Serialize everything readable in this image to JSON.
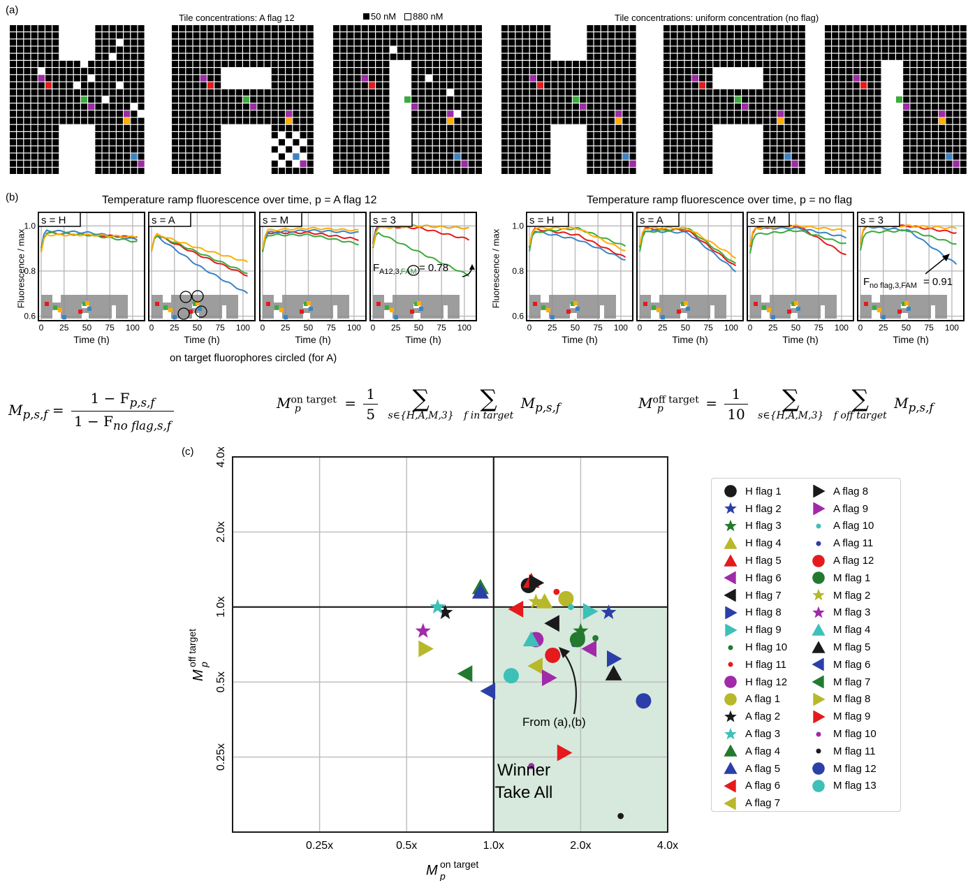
{
  "panel_a": {
    "label": "(a)",
    "left_title": "Tile concentrations: A flag 12",
    "legend_black": "50 nM",
    "legend_white": "880 nM",
    "right_title": "Tile concentrations: uniform concentration (no flag)"
  },
  "panel_b": {
    "label": "(b)",
    "left_title": "Temperature ramp fluorescence over time, p = A flag 12",
    "right_title": "Temperature ramp fluorescence over time, p = no flag",
    "ylabel": "Fluorescence / max",
    "xlabel": "Time (h)",
    "note": "on target fluorophores circled (for A)",
    "subplot_titles": [
      "s = H",
      "s = A",
      "s = M",
      "s = 3",
      "s = H",
      "s = A",
      "s = M",
      "s = 3"
    ],
    "y_ticks": [
      "1.0",
      "0.8",
      "0.6"
    ],
    "x_ticks": [
      "0",
      "25",
      "50",
      "75",
      "100"
    ],
    "annotation_left_main": "F",
    "annotation_left_sub1": "A12,3,",
    "annotation_left_sub2": "FAM",
    "annotation_left_value": " = 0.78",
    "annotation_right_main": "F",
    "annotation_right_sub": "no flag,3,FAM",
    "annotation_right_value": " = 0.91",
    "series_colors": {
      "red": "#e41a1c",
      "blue": "#3a84c4",
      "green": "#3caa3c",
      "orange": "#ffae00"
    }
  },
  "formulas": {
    "f1_lhs": "M",
    "f1_lhs_sub": "p,s,f",
    "f1_num": "1 − F",
    "f1_num_sub": "p,s,f",
    "f1_den": "1 − F",
    "f1_den_sub": "no flag,s,f",
    "f2_lhs": "M",
    "f2_sup": "on target",
    "f2_sub": "p",
    "f2_frac_num": "1",
    "f2_frac_den": "5",
    "f2_sum1": "s∈{H,A,M,3}",
    "f2_sum2": "f in target",
    "f2_rhs": "M",
    "f2_rhs_sub": "p,s,f",
    "f3_lhs": "M",
    "f3_sup": "off target",
    "f3_sub": "p",
    "f3_frac_num": "1",
    "f3_frac_den": "10",
    "f3_sum1": "s∈{H,A,M,3}",
    "f3_sum2": "f off target",
    "f3_rhs": "M",
    "f3_rhs_sub": "p,s,f",
    "equals": "="
  },
  "panel_c": {
    "label": "(c)",
    "x_ticks": [
      "0.25x",
      "0.5x",
      "1.0x",
      "2.0x",
      "4.0x"
    ],
    "y_ticks": [
      "0.25x",
      "0.5x",
      "1.0x",
      "2.0x",
      "4.0x"
    ],
    "xlabel_main": "M",
    "xlabel_sup": "on target",
    "xlabel_sub": "p",
    "ylabel_main": "M",
    "ylabel_sup": "off target",
    "ylabel_sub": "p",
    "region_label_1": "Winner",
    "region_label_2": "Take All",
    "arrow_label": "From (a),(b)",
    "region_color": "#d6e9dc",
    "region_text_color": "#2e9140"
  },
  "chart_data": {
    "type": "scatter",
    "xlabel": "M_p^on target",
    "ylabel": "M_p^off target",
    "log_scale": true,
    "xlim": [
      0.125,
      4.0
    ],
    "ylim": [
      0.125,
      4.0
    ],
    "grid": true,
    "legend_position": "right",
    "series": [
      {
        "name": "H flag 1",
        "color": "#1a1a1a",
        "marker": "circle",
        "x": 1.32,
        "y": 1.22
      },
      {
        "name": "H flag 2",
        "color": "#2b3fa8",
        "marker": "star",
        "x": 2.5,
        "y": 0.95
      },
      {
        "name": "H flag 3",
        "color": "#237a2e",
        "marker": "star",
        "x": 2.0,
        "y": 0.8
      },
      {
        "name": "H flag 4",
        "color": "#b8b82b",
        "marker": "triangle-up",
        "x": 1.5,
        "y": 1.05
      },
      {
        "name": "H flag 5",
        "color": "#e41a1c",
        "marker": "triangle-up",
        "x": 1.35,
        "y": 1.27
      },
      {
        "name": "H flag 6",
        "color": "#a02aa8",
        "marker": "triangle-left",
        "x": 2.15,
        "y": 0.68
      },
      {
        "name": "H flag 7",
        "color": "#1a1a1a",
        "marker": "triangle-left",
        "x": 1.6,
        "y": 0.86
      },
      {
        "name": "H flag 8",
        "color": "#2b3fa8",
        "marker": "triangle-right",
        "x": 2.6,
        "y": 0.62
      },
      {
        "name": "H flag 9",
        "color": "#3dc0b8",
        "marker": "triangle-right",
        "x": 2.15,
        "y": 0.96
      },
      {
        "name": "H flag 10",
        "color": "#237a2e",
        "marker": "dot",
        "x": 2.25,
        "y": 0.75
      },
      {
        "name": "H flag 11",
        "color": "#e41a1c",
        "marker": "dot",
        "x": 1.65,
        "y": 1.15
      },
      {
        "name": "H flag 12",
        "color": "#a02aa8",
        "marker": "circle",
        "x": 1.4,
        "y": 0.74
      },
      {
        "name": "A flag 1",
        "color": "#b8b82b",
        "marker": "circle",
        "x": 1.78,
        "y": 1.08
      },
      {
        "name": "A flag 2",
        "color": "#1a1a1a",
        "marker": "star",
        "x": 0.68,
        "y": 0.95
      },
      {
        "name": "A flag 3",
        "color": "#3dc0b8",
        "marker": "star",
        "x": 0.64,
        "y": 1.0
      },
      {
        "name": "A flag 4",
        "color": "#237a2e",
        "marker": "triangle-up",
        "x": 0.9,
        "y": 1.2
      },
      {
        "name": "A flag 5",
        "color": "#2b3fa8",
        "marker": "triangle-up",
        "x": 0.9,
        "y": 1.15
      },
      {
        "name": "A flag 6",
        "color": "#e41a1c",
        "marker": "triangle-left",
        "x": 1.2,
        "y": 0.98
      },
      {
        "name": "A flag 7",
        "color": "#b8b82b",
        "marker": "triangle-left",
        "x": 1.4,
        "y": 0.58
      },
      {
        "name": "A flag 8",
        "color": "#1a1a1a",
        "marker": "triangle-right",
        "x": 1.4,
        "y": 1.25
      },
      {
        "name": "A flag 9",
        "color": "#a02aa8",
        "marker": "triangle-right",
        "x": 1.55,
        "y": 0.52
      },
      {
        "name": "A flag 10",
        "color": "#3dc0b8",
        "marker": "dot",
        "x": 1.85,
        "y": 1.0
      },
      {
        "name": "A flag 11",
        "color": "#2b3fa8",
        "marker": "dot",
        "x": 1.9,
        "y": 0.71
      },
      {
        "name": "A flag 12",
        "color": "#e41a1c",
        "marker": "circle",
        "x": 1.6,
        "y": 0.64
      },
      {
        "name": "M flag 1",
        "color": "#237a2e",
        "marker": "circle",
        "x": 1.95,
        "y": 0.74
      },
      {
        "name": "M flag 2",
        "color": "#b8b82b",
        "marker": "star",
        "x": 1.4,
        "y": 1.05
      },
      {
        "name": "M flag 3",
        "color": "#a02aa8",
        "marker": "star",
        "x": 0.57,
        "y": 0.8
      },
      {
        "name": "M flag 4",
        "color": "#3dc0b8",
        "marker": "triangle-up",
        "x": 1.35,
        "y": 0.74
      },
      {
        "name": "M flag 5",
        "color": "#1a1a1a",
        "marker": "triangle-up",
        "x": 2.6,
        "y": 0.54
      },
      {
        "name": "M flag 6",
        "color": "#2b3fa8",
        "marker": "triangle-left",
        "x": 0.96,
        "y": 0.46
      },
      {
        "name": "M flag 7",
        "color": "#237a2e",
        "marker": "triangle-left",
        "x": 0.8,
        "y": 0.54
      },
      {
        "name": "M flag 8",
        "color": "#b8b82b",
        "marker": "triangle-right",
        "x": 0.58,
        "y": 0.68
      },
      {
        "name": "M flag 9",
        "color": "#e41a1c",
        "marker": "triangle-right",
        "x": 1.75,
        "y": 0.26
      },
      {
        "name": "M flag 10",
        "color": "#a02aa8",
        "marker": "dot",
        "x": 1.35,
        "y": 0.23
      },
      {
        "name": "M flag 11",
        "color": "#1a1a1a",
        "marker": "dot",
        "x": 2.75,
        "y": 0.145
      },
      {
        "name": "M flag 12",
        "color": "#2b3fa8",
        "marker": "circle",
        "x": 3.3,
        "y": 0.42
      },
      {
        "name": "M flag 13",
        "color": "#3dc0b8",
        "marker": "circle",
        "x": 1.15,
        "y": 0.53
      }
    ]
  }
}
